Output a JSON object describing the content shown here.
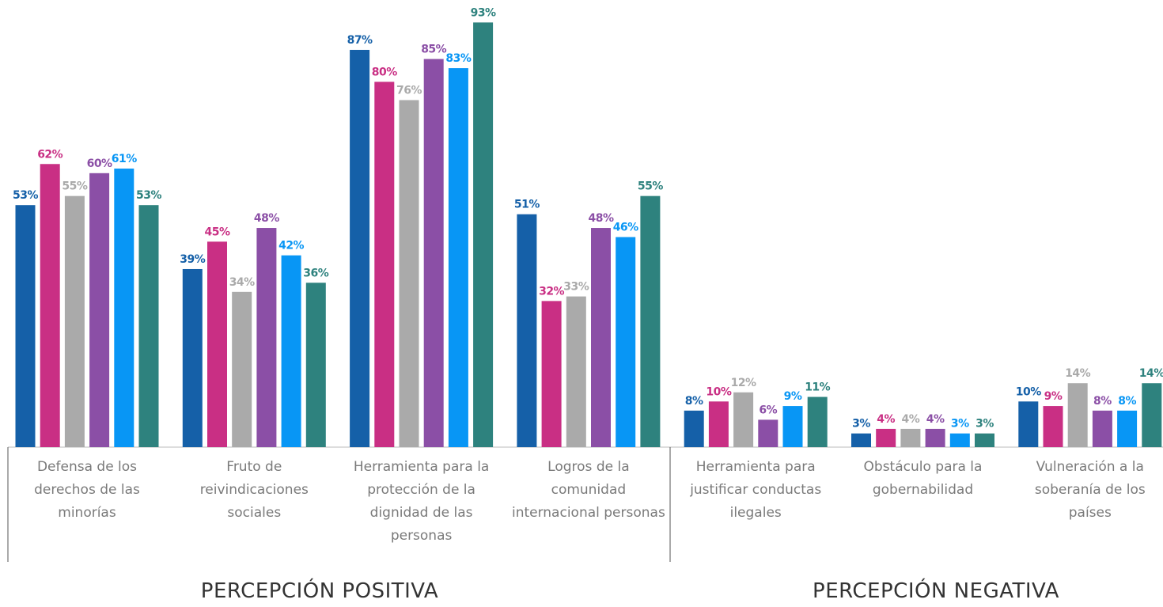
{
  "chart_data": {
    "type": "bar",
    "categories": [
      "Defensa de los derechos de las minorías",
      "Fruto de reivindicaciones sociales",
      "Herramienta para la protección de la dignidad de las personas",
      "Logros de la comunidad internacional personas",
      "Herramienta para justificar conductas ilegales",
      "Obstáculo para la gobernabilidad",
      "Vulneración a la soberanía de los países"
    ],
    "series": [
      {
        "color": "#1560a8",
        "values": [
          53,
          39,
          87,
          51,
          8,
          3,
          10
        ],
        "value_labels": [
          "53%",
          "39%",
          "87%",
          "51%",
          "8%",
          "3%",
          "10%"
        ]
      },
      {
        "color": "#c92f84",
        "values": [
          62,
          45,
          80,
          32,
          10,
          4,
          9
        ],
        "value_labels": [
          "62%",
          "45%",
          "80%",
          "32%",
          "10%",
          "4%",
          "9%"
        ]
      },
      {
        "color": "#aaaaaa",
        "values": [
          55,
          34,
          76,
          33,
          12,
          4,
          14
        ],
        "value_labels": [
          "55%",
          "34%",
          "76%",
          "33%",
          "12%",
          "4%",
          "14%"
        ]
      },
      {
        "color": "#8b4fa6",
        "values": [
          60,
          48,
          85,
          48,
          6,
          4,
          8
        ],
        "value_labels": [
          "60%",
          "48%",
          "85%",
          "48%",
          "6%",
          "4%",
          "8%"
        ]
      },
      {
        "color": "#0896f5",
        "values": [
          61,
          42,
          83,
          46,
          9,
          3,
          8
        ],
        "value_labels": [
          "61%",
          "42%",
          "83%",
          "46%",
          "9%",
          "3%",
          "8%"
        ]
      },
      {
        "color": "#2e827e",
        "values": [
          53,
          36,
          93,
          55,
          11,
          3,
          14
        ],
        "value_labels": [
          "53%",
          "36%",
          "93%",
          "55%",
          "11%",
          "3%",
          "14%"
        ]
      }
    ],
    "annotations": [
      "PERCEPCIÓN POSITIVA",
      "PERCEPCIÓN NEGATIVA"
    ]
  }
}
